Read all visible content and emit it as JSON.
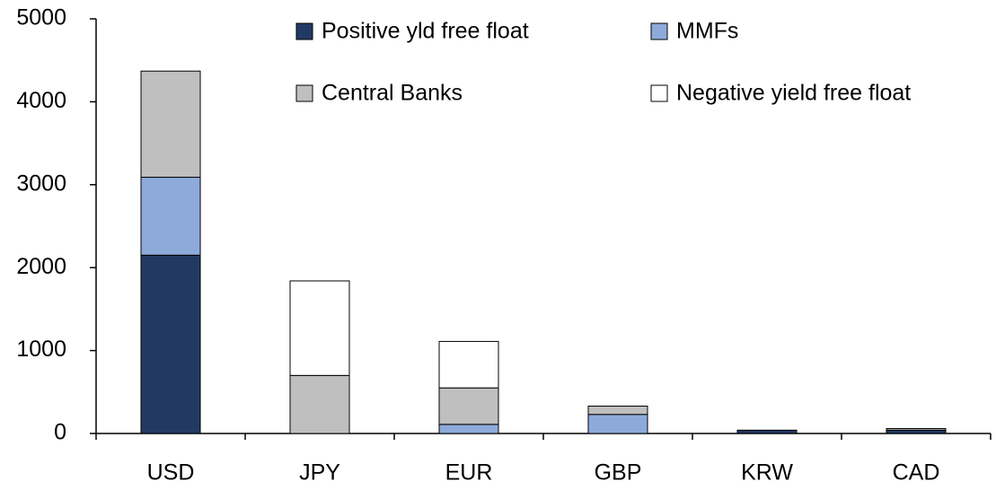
{
  "chart_data": {
    "type": "stacked_bar",
    "categories": [
      "USD",
      "JPY",
      "EUR",
      "GBP",
      "KRW",
      "CAD"
    ],
    "series": [
      {
        "name": "Positive yld free float",
        "color": "#223a63",
        "values": [
          2150,
          0,
          0,
          0,
          40,
          40
        ]
      },
      {
        "name": "MMFs",
        "color": "#8eaadb",
        "values": [
          940,
          0,
          110,
          230,
          0,
          0
        ]
      },
      {
        "name": "Central Banks",
        "color": "#bfbfbf",
        "values": [
          1280,
          700,
          440,
          100,
          0,
          20
        ]
      },
      {
        "name": "Negative yield free float",
        "color": "#ffffff",
        "values": [
          0,
          1140,
          560,
          0,
          0,
          0
        ]
      }
    ],
    "ylim": [
      0,
      5000
    ],
    "yticks": [
      0,
      1000,
      2000,
      3000,
      4000,
      5000
    ],
    "grid": false
  }
}
